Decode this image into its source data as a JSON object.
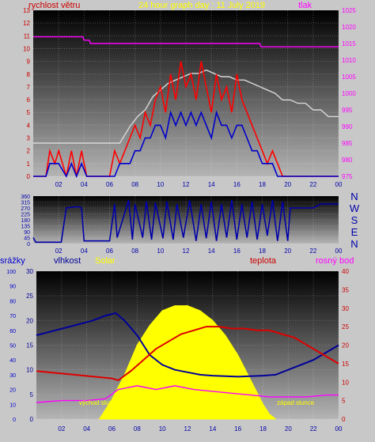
{
  "chart_data": [
    {
      "type": "line",
      "title": "24 hour graph day : 11 July 2019",
      "left_axis_label": "rychlost větru",
      "right_axis_label": "tlak",
      "x_ticks": [
        "02",
        "04",
        "06",
        "08",
        "10",
        "12",
        "14",
        "16",
        "18",
        "20",
        "22",
        "00"
      ],
      "left_ylim": [
        0,
        13
      ],
      "left_ticks": [
        "0",
        "1",
        "2",
        "3",
        "4",
        "5",
        "6",
        "7",
        "8",
        "9",
        "10",
        "11",
        "12",
        "13"
      ],
      "right_ylim": [
        975,
        1025
      ],
      "right_ticks": [
        "975",
        "980",
        "985",
        "990",
        "995",
        "1000",
        "1005",
        "1010",
        "1015",
        "1020",
        "1025"
      ],
      "grid": true,
      "series": [
        {
          "color": "#ff00ff",
          "axis": "right",
          "x": [
            0,
            3.9,
            4.0,
            4.4,
            4.5,
            17.8,
            17.9,
            24
          ],
          "values": [
            1017,
            1017,
            1016,
            1016,
            1015,
            1015,
            1014,
            1014
          ]
        },
        {
          "color": "#d8d8d8",
          "axis": "right",
          "x": [
            0,
            2.0,
            4.0,
            5.0,
            6.0,
            6.8,
            7.6,
            8.2,
            8.8,
            9.4,
            10.0,
            10.6,
            11.2,
            11.8,
            12.4,
            13.0,
            13.6,
            14.2,
            14.8,
            15.4,
            16.0,
            16.6,
            17.2,
            17.8,
            18.4,
            19.0,
            19.6,
            20.2,
            20.8,
            21.4,
            22.0,
            22.6,
            23.2,
            24
          ],
          "values": [
            985,
            985,
            985,
            985,
            985,
            985,
            990,
            993,
            995,
            999,
            1001,
            1003,
            1004,
            1005,
            1006,
            1006,
            1007,
            1006,
            1005,
            1005,
            1004,
            1004,
            1003,
            1002,
            1001,
            1000,
            998,
            998,
            997,
            997,
            995,
            995,
            993,
            993
          ]
        },
        {
          "color": "#ff0000",
          "axis": "left",
          "x": [
            0,
            1.0,
            1.3,
            1.7,
            2.0,
            2.6,
            3.0,
            3.4,
            3.8,
            4.2,
            4.6,
            5.0,
            5.6,
            6.0,
            6.4,
            6.8,
            7.2,
            7.6,
            8.0,
            8.4,
            8.8,
            9.2,
            9.6,
            10.0,
            10.4,
            10.8,
            11.2,
            11.6,
            12.0,
            12.4,
            12.8,
            13.2,
            13.6,
            14.0,
            14.4,
            14.8,
            15.2,
            15.6,
            16.0,
            16.4,
            16.8,
            17.2,
            17.6,
            18.0,
            18.4,
            18.8,
            19.2,
            19.6,
            20.0,
            24
          ],
          "values": [
            0,
            0,
            2,
            1,
            2,
            0,
            2,
            0,
            2,
            0,
            0,
            0,
            0,
            0,
            2,
            1,
            2,
            3,
            4,
            3,
            5,
            4,
            6,
            7,
            5,
            8,
            6,
            9,
            7,
            8,
            6,
            9,
            7,
            5,
            8,
            6,
            7,
            5,
            8,
            6,
            5,
            4,
            3,
            2,
            1,
            2,
            1,
            0,
            0,
            0
          ]
        },
        {
          "color": "#0000cc",
          "axis": "left",
          "x": [
            0,
            1.0,
            1.3,
            1.7,
            2.0,
            2.6,
            3.0,
            3.4,
            3.8,
            4.2,
            4.6,
            5.0,
            5.6,
            6.0,
            6.4,
            6.8,
            7.2,
            7.6,
            8.0,
            8.4,
            8.8,
            9.2,
            9.6,
            10.0,
            10.4,
            10.8,
            11.2,
            11.6,
            12.0,
            12.4,
            12.8,
            13.2,
            13.6,
            14.0,
            14.4,
            14.8,
            15.2,
            15.6,
            16.0,
            16.4,
            16.8,
            17.2,
            17.6,
            18.0,
            18.4,
            18.8,
            19.2,
            19.6,
            20.0,
            24
          ],
          "values": [
            0,
            0,
            1,
            1,
            1,
            0,
            1,
            0,
            1,
            0,
            0,
            0,
            0,
            0,
            0,
            1,
            1,
            1,
            2,
            2,
            3,
            3,
            4,
            4,
            3,
            5,
            4,
            5,
            4,
            5,
            4,
            5,
            4,
            3,
            5,
            4,
            4,
            3,
            4,
            4,
            3,
            2,
            2,
            1,
            1,
            1,
            0,
            0,
            0,
            0
          ]
        }
      ]
    },
    {
      "type": "line",
      "x_ticks": [
        "02",
        "04",
        "06",
        "08",
        "10",
        "12",
        "14",
        "16",
        "18",
        "20",
        "22",
        "00"
      ],
      "left_ylim": [
        0,
        360
      ],
      "left_ticks": [
        "0",
        "45",
        "90",
        "135",
        "180",
        "225",
        "270",
        "315",
        "360"
      ],
      "right_labels": [
        "N",
        "W",
        "S",
        "E",
        "N"
      ],
      "series": [
        {
          "color": "#0000aa",
          "x": [
            0,
            0.2,
            0.4,
            2.2,
            2.6,
            3.5,
            3.8,
            4.0,
            4.4,
            6.0,
            6.4,
            6.6,
            7.5,
            7.8,
            8.0,
            8.6,
            8.9,
            9.3,
            9.6,
            10.2,
            10.5,
            11.0,
            11.3,
            11.8,
            12.3,
            12.8,
            13.2,
            13.6,
            14.0,
            14.4,
            14.8,
            15.2,
            15.6,
            16.0,
            16.4,
            16.8,
            17.2,
            17.6,
            18.0,
            18.4,
            18.8,
            19.2,
            19.6,
            20.0,
            20.2,
            22.0,
            22.6,
            24
          ],
          "values": [
            45,
            10,
            10,
            10,
            270,
            280,
            270,
            20,
            20,
            20,
            300,
            45,
            330,
            30,
            300,
            45,
            320,
            30,
            310,
            40,
            320,
            30,
            300,
            45,
            330,
            20,
            300,
            40,
            320,
            20,
            300,
            45,
            330,
            30,
            300,
            45,
            320,
            30,
            300,
            60,
            330,
            20,
            320,
            20,
            270,
            270,
            300,
            300
          ]
        }
      ]
    },
    {
      "type": "area",
      "left_axis_label": "srážky",
      "second_axis_label": "vlhkost",
      "solar_label": "Solar",
      "right_axis_label": "teplota",
      "right2_axis_label": "rosný bod",
      "sunrise_label": "východ slunce",
      "sunset_label": "západ slunce",
      "x_ticks": [
        "02",
        "04",
        "06",
        "08",
        "10",
        "12",
        "14",
        "16",
        "18",
        "20",
        "22",
        "00"
      ],
      "precip_ylim": [
        0,
        100
      ],
      "precip_ticks": [
        "0",
        "10",
        "20",
        "30",
        "40",
        "50",
        "60",
        "70",
        "80",
        "90",
        "100"
      ],
      "humidity_ylim": [
        0,
        30
      ],
      "humidity_ticks": [
        "0",
        "5",
        "10",
        "15",
        "20",
        "25",
        "30"
      ],
      "temp_ylim": [
        0,
        40
      ],
      "temp_ticks": [
        "0",
        "5",
        "10",
        "15",
        "20",
        "25",
        "30",
        "35",
        "40"
      ],
      "series": [
        {
          "name": "Solar",
          "color": "#ffff00",
          "x": [
            5.0,
            6.0,
            7.0,
            8.0,
            9.0,
            10.0,
            11.0,
            12.0,
            13.0,
            14.0,
            15.0,
            16.0,
            17.0,
            18.0,
            18.5,
            19.0
          ],
          "values": [
            0,
            4,
            9,
            15,
            19,
            22,
            23,
            23,
            22,
            20,
            17,
            13,
            8,
            3,
            1,
            0
          ]
        },
        {
          "name": "vlhkost",
          "color": "#000099",
          "x": [
            0,
            1.5,
            3.0,
            4.5,
            5.5,
            6.3,
            7.0,
            8.0,
            9.0,
            10.0,
            11.0,
            12.0,
            13.0,
            14.0,
            15.0,
            16.0,
            17.0,
            18.0,
            19.0,
            20.0,
            21.0,
            22.0,
            23.0,
            24
          ],
          "values": [
            17,
            18,
            19,
            20,
            21,
            21.5,
            20,
            17,
            13,
            11,
            10,
            9.5,
            9,
            8.8,
            8.7,
            8.6,
            8.7,
            8.8,
            9.0,
            10,
            11,
            12,
            13.5,
            15
          ]
        },
        {
          "name": "teplota",
          "color": "#dd0000",
          "x": [
            0,
            1.5,
            3.0,
            4.5,
            6.0,
            6.5,
            7.5,
            8.5,
            9.5,
            10.5,
            11.5,
            12.5,
            13.5,
            14.5,
            15.5,
            16.5,
            17.5,
            18.5,
            19.5,
            20.5,
            21.5,
            22.5,
            23.5,
            24
          ],
          "values": [
            13,
            12.5,
            12,
            11.5,
            11,
            10.5,
            13,
            16,
            19,
            21,
            23,
            24,
            25,
            25,
            24.5,
            24.5,
            24,
            24,
            23,
            22,
            20,
            18,
            16,
            15
          ]
        },
        {
          "name": "rosný bod",
          "color": "#ff00ff",
          "x": [
            0,
            2.0,
            4.0,
            5.5,
            6.5,
            8.0,
            9.5,
            11.0,
            12.5,
            14.0,
            15.5,
            17.0,
            18.5,
            20.0,
            21.5,
            23.0,
            24
          ],
          "values": [
            4.5,
            5,
            5,
            5.5,
            8,
            9,
            8,
            9,
            8,
            7.5,
            7,
            6.5,
            6,
            6,
            6,
            6.5,
            6.5
          ]
        }
      ]
    }
  ]
}
